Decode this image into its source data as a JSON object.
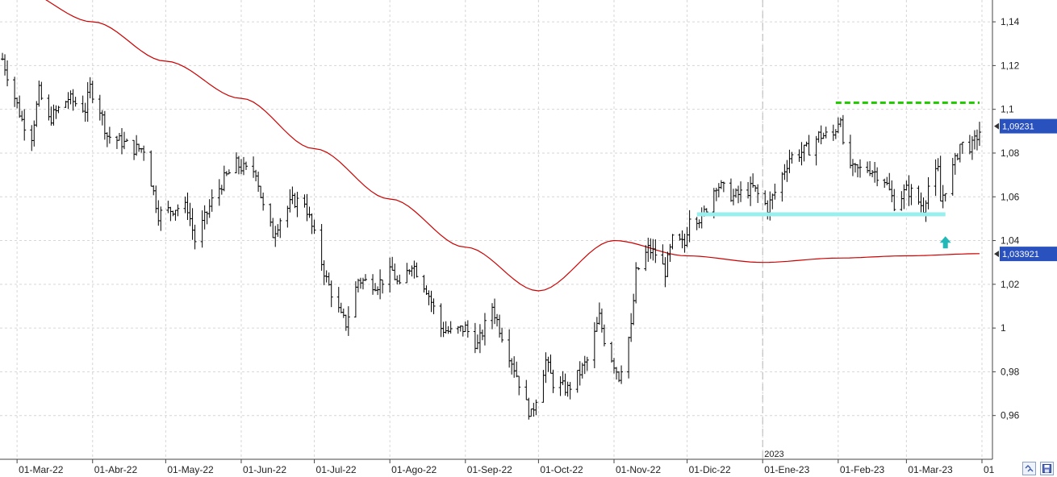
{
  "chart_data": {
    "type": "ohlc",
    "y_axis": {
      "range": [
        0.94,
        1.15
      ],
      "ticks": [
        0.96,
        0.98,
        1.0,
        1.02,
        1.04,
        1.06,
        1.08,
        1.1,
        1.12,
        1.14
      ],
      "tick_labels": [
        "0,96",
        "0,98",
        "1",
        "1,02",
        "1,04",
        "1,06",
        "1,08",
        "1,1",
        "1,12",
        "1,14"
      ],
      "side": "right",
      "grid": true
    },
    "x_axis": {
      "range": [
        "2022-02-22",
        "2023-04-01"
      ],
      "ticks": [
        "2022-03-01",
        "2022-04-01",
        "2022-05-01",
        "2022-06-01",
        "2022-07-01",
        "2022-08-01",
        "2022-09-01",
        "2022-10-01",
        "2022-11-01",
        "2022-12-01",
        "2023-01-01",
        "2023-02-01",
        "2023-03-01",
        "2023-04-01"
      ],
      "tick_labels": [
        "01-Mar-22",
        "01-Abr-22",
        "01-May-22",
        "01-Jun-22",
        "01-Jul-22",
        "01-Ago-22",
        "01-Sep-22",
        "01-Oct-22",
        "01-Nov-22",
        "01-Dic-22",
        "01-Ene-23",
        "01-Feb-23",
        "01-Mar-23",
        "01"
      ],
      "grid": true,
      "year_marker": {
        "date": "2023-01-01",
        "label": "2023"
      }
    },
    "price_anchors": [
      [
        "2022-02-23",
        1.123
      ],
      [
        "2022-03-03",
        1.095
      ],
      [
        "2022-03-07",
        1.088
      ],
      [
        "2022-03-10",
        1.108
      ],
      [
        "2022-03-14",
        1.095
      ],
      [
        "2022-03-22",
        1.105
      ],
      [
        "2022-03-29",
        1.1
      ],
      [
        "2022-03-31",
        1.11
      ],
      [
        "2022-04-04",
        1.1
      ],
      [
        "2022-04-07",
        1.088
      ],
      [
        "2022-04-13",
        1.085
      ],
      [
        "2022-04-18",
        1.082
      ],
      [
        "2022-04-22",
        1.082
      ],
      [
        "2022-04-28",
        1.052
      ],
      [
        "2022-05-05",
        1.055
      ],
      [
        "2022-05-10",
        1.055
      ],
      [
        "2022-05-13",
        1.04
      ],
      [
        "2022-05-17",
        1.05
      ],
      [
        "2022-05-20",
        1.058
      ],
      [
        "2022-05-25",
        1.068
      ],
      [
        "2022-05-30",
        1.075
      ],
      [
        "2022-06-03",
        1.072
      ],
      [
        "2022-06-07",
        1.072
      ],
      [
        "2022-06-10",
        1.055
      ],
      [
        "2022-06-14",
        1.043
      ],
      [
        "2022-06-17",
        1.05
      ],
      [
        "2022-06-22",
        1.058
      ],
      [
        "2022-06-27",
        1.058
      ],
      [
        "2022-07-01",
        1.042
      ],
      [
        "2022-07-06",
        1.022
      ],
      [
        "2022-07-12",
        1.005
      ],
      [
        "2022-07-14",
        1.002
      ],
      [
        "2022-07-19",
        1.022
      ],
      [
        "2022-07-27",
        1.02
      ],
      [
        "2022-08-02",
        1.026
      ],
      [
        "2022-08-05",
        1.018
      ],
      [
        "2022-08-10",
        1.03
      ],
      [
        "2022-08-16",
        1.018
      ],
      [
        "2022-08-22",
        1.0
      ],
      [
        "2022-08-26",
        0.998
      ],
      [
        "2022-09-01",
        1.0
      ],
      [
        "2022-09-06",
        0.992
      ],
      [
        "2022-09-12",
        1.01
      ],
      [
        "2022-09-15",
        1.0
      ],
      [
        "2022-09-21",
        0.982
      ],
      [
        "2022-09-26",
        0.965
      ],
      [
        "2022-09-28",
        0.96
      ],
      [
        "2022-10-04",
        0.985
      ],
      [
        "2022-10-07",
        0.975
      ],
      [
        "2022-10-13",
        0.972
      ],
      [
        "2022-10-17",
        0.978
      ],
      [
        "2022-10-21",
        0.985
      ],
      [
        "2022-10-26",
        1.005
      ],
      [
        "2022-10-28",
        0.995
      ],
      [
        "2022-11-03",
        0.978
      ],
      [
        "2022-11-08",
        1.0
      ],
      [
        "2022-11-10",
        1.025
      ],
      [
        "2022-11-15",
        1.036
      ],
      [
        "2022-11-18",
        1.034
      ],
      [
        "2022-11-22",
        1.026
      ],
      [
        "2022-11-25",
        1.04
      ],
      [
        "2022-11-30",
        1.038
      ],
      [
        "2022-12-02",
        1.052
      ],
      [
        "2022-12-07",
        1.05
      ],
      [
        "2022-12-13",
        1.066
      ],
      [
        "2022-12-20",
        1.06
      ],
      [
        "2022-12-28",
        1.064
      ],
      [
        "2023-01-03",
        1.055
      ],
      [
        "2023-01-06",
        1.062
      ],
      [
        "2023-01-12",
        1.078
      ],
      [
        "2023-01-16",
        1.08
      ],
      [
        "2023-01-20",
        1.082
      ],
      [
        "2023-01-24",
        1.088
      ],
      [
        "2023-01-30",
        1.088
      ],
      [
        "2023-02-02",
        1.098
      ],
      [
        "2023-02-03",
        1.082
      ],
      [
        "2023-02-07",
        1.072
      ],
      [
        "2023-02-14",
        1.073
      ],
      [
        "2023-02-20",
        1.068
      ],
      [
        "2023-02-24",
        1.057
      ],
      [
        "2023-03-01",
        1.063
      ],
      [
        "2023-03-03",
        1.062
      ],
      [
        "2023-03-08",
        1.055
      ],
      [
        "2023-03-10",
        1.065
      ],
      [
        "2023-03-14",
        1.072
      ],
      [
        "2023-03-15",
        1.058
      ],
      [
        "2023-03-21",
        1.076
      ],
      [
        "2023-03-23",
        1.084
      ],
      [
        "2023-03-28",
        1.083
      ],
      [
        "2023-03-31",
        1.09
      ]
    ],
    "moving_average": {
      "color": "#cc0000",
      "points": [
        [
          "2022-03-01",
          1.155
        ],
        [
          "2022-04-01",
          1.14
        ],
        [
          "2022-05-01",
          1.122
        ],
        [
          "2022-06-01",
          1.105
        ],
        [
          "2022-07-01",
          1.082
        ],
        [
          "2022-08-01",
          1.059
        ],
        [
          "2022-09-01",
          1.037
        ],
        [
          "2022-10-01",
          1.017
        ],
        [
          "2022-11-01",
          1.04
        ],
        [
          "2022-12-01",
          1.033
        ],
        [
          "2023-01-01",
          1.03
        ],
        [
          "2023-02-01",
          1.032
        ],
        [
          "2023-03-01",
          1.033
        ],
        [
          "2023-03-31",
          1.034
        ]
      ]
    },
    "resistance_line": {
      "value": 1.103,
      "from": "2023-01-31",
      "to": "2023-03-31",
      "color": "#22cc00"
    },
    "support_zone": {
      "value": 1.052,
      "from": "2022-12-05",
      "to": "2023-03-17",
      "color": "#99eeee"
    },
    "up_arrow": {
      "date": "2023-03-17",
      "value": 1.039,
      "color": "#22b8b8"
    },
    "current_price": {
      "label": "1,09231",
      "value": 1.0923,
      "color": "#2a52be"
    },
    "ma_value": {
      "label": "1,033921",
      "value": 1.0339,
      "color": "#2a52be"
    },
    "bar_color": "#000000"
  },
  "controls": {
    "zoom_icon": "double-chevron-icon",
    "save_icon": "floppy-disk-icon"
  }
}
